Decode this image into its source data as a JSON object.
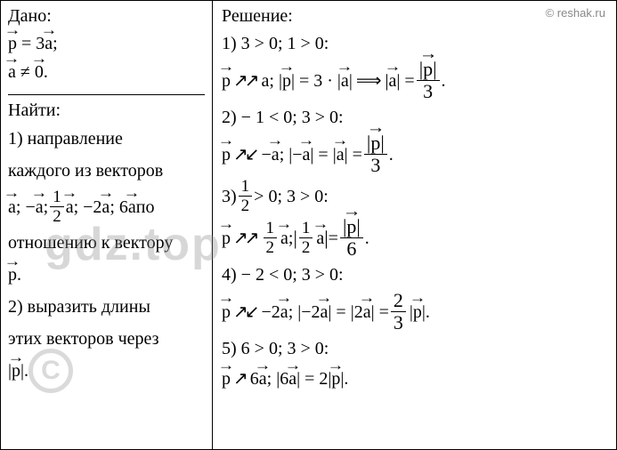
{
  "watermarks": {
    "site": "© reshak.ru",
    "gdz": "gdz.top",
    "copyright": "C"
  },
  "left": {
    "given_label": "Дано:",
    "line1_p": "p",
    "line1_eq": " = 3",
    "line1_a": "a",
    "line1_end": ";",
    "line2_a": "a",
    "line2_neq": " ≠ ",
    "line2_zero": "0",
    "line2_end": ".",
    "find_label": "Найти:",
    "task1_l1": "1) направление",
    "task1_l2": "каждого из векторов",
    "vectors_row": {
      "a": "a",
      "sep1": ";  −",
      "na": "a",
      "sep2": "; ",
      "half_num": "1",
      "half_den": "2",
      "ha": "a",
      "sep3": ";  −2",
      "n2a": "a",
      "sep4": "; 6",
      "s6a": "a",
      "sep5": " по"
    },
    "task1_l4a": "отношению к вектору",
    "task1_p": "p",
    "task1_end": ".",
    "task2_l1": "2) выразить длины",
    "task2_l2": "этих векторов через",
    "task2_abs_p": "p",
    "task2_end": "."
  },
  "right": {
    "sol_label": "Решение:",
    "r1_cond": "1) 3 > 0;   1 > 0:",
    "r1_p": "p",
    "r1_arrow": "↗↗",
    "r1_a": "a",
    "r1_sep": ";  |",
    "r1_pv": "p",
    "r1_eq1": "| = 3 · |",
    "r1_av": "a",
    "r1_imp": "| ",
    "r1_imp_sym": "⟹",
    "r1_sp": " |",
    "r1_av2": "a",
    "r1_eq2": "| = ",
    "r1_frac_num_p": "p",
    "r1_frac_den": "3",
    "r1_end": ".",
    "r2_cond": "2) − 1 < 0;   3 > 0:",
    "r2_p": "p",
    "r2_arrow": "↗↙",
    "r2_minus": "−",
    "r2_a": "a",
    "r2_sep": ";  |−",
    "r2_av": "a",
    "r2_eq1": "| = |",
    "r2_av2": "a",
    "r2_eq2": "| = ",
    "r2_frac_num_p": "p",
    "r2_frac_den": "3",
    "r2_end": ".",
    "r3_cond_pre": "3) ",
    "r3_half_num": "1",
    "r3_half_den": "2",
    "r3_cond_post": " > 0;   3 > 0:",
    "r3_p": "p",
    "r3_arrow": "↗↗",
    "r3_half2_num": "1",
    "r3_half2_den": "2",
    "r3_a": "a",
    "r3_sep": ";  ",
    "r3_bar1": "|",
    "r3_half3_num": "1",
    "r3_half3_den": "2",
    "r3_av": "a",
    "r3_bar2": "|",
    "r3_eq": " = ",
    "r3_frac_num_p": "p",
    "r3_frac_den": "6",
    "r3_end": ".",
    "r4_cond": "4) − 2 < 0;   3 > 0:",
    "r4_p": "p",
    "r4_arrow": "↗↙",
    "r4_minus": "−2",
    "r4_a": "a",
    "r4_sep": ";  |−2",
    "r4_av": "a",
    "r4_eq1": "| = |2",
    "r4_av2": "a",
    "r4_eq2": "| = ",
    "r4_frac_num": "2",
    "r4_frac_den": "3",
    "r4_abs_p": "p",
    "r4_end": "|.",
    "r5_cond": "5)  6 > 0;   3 > 0:",
    "r5_p": "p",
    "r5_arrow": "↗",
    "r5_six": " 6",
    "r5_a": "a",
    "r5_sep": ";  |6",
    "r5_av": "a",
    "r5_eq": "| = 2|",
    "r5_pv": "p",
    "r5_end": "|."
  },
  "colors": {
    "text": "#000000",
    "wm": "#888888"
  }
}
